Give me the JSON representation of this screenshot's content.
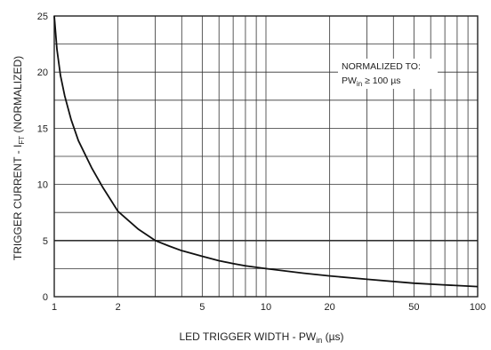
{
  "chart_data": {
    "type": "line",
    "x_scale": "log",
    "xlim": [
      1,
      100
    ],
    "ylim": [
      0,
      25
    ],
    "grid": true,
    "x_ticks": [
      1,
      2,
      5,
      10,
      20,
      50,
      100
    ],
    "x_tick_labels": [
      "1",
      "2",
      "5",
      "10",
      "20",
      "50",
      "100"
    ],
    "x_minor_ticks": [
      3,
      4,
      6,
      7,
      8,
      9,
      30,
      40,
      60,
      70,
      80,
      90
    ],
    "y_ticks": [
      0,
      5,
      10,
      15,
      20,
      25
    ],
    "y_tick_labels": [
      "0",
      "5",
      "10",
      "15",
      "20",
      "25"
    ],
    "y_minor_ticks": [
      2.5,
      7.5,
      12.5,
      17.5,
      22.5
    ],
    "xlabel": {
      "pre": "LED TRIGGER WIDTH - PW",
      "sub": "in",
      "post": " (µs)"
    },
    "ylabel": {
      "pre": "TRIGGER CURRENT - I",
      "sub": "FT",
      "post": " (NORMALIZED)"
    },
    "annotation": {
      "line1": "NORMALIZED TO:",
      "line2_pre": "PW",
      "line2_sub": "in",
      "line2_post": " ≥ 100 µs"
    },
    "series": [
      {
        "x": [
          1.0,
          1.03,
          1.07,
          1.12,
          1.2,
          1.3,
          1.5,
          1.7,
          2.0,
          2.5,
          3.0,
          3.5,
          4,
          5,
          6,
          7,
          8,
          10,
          15,
          20,
          30,
          50,
          70,
          100
        ],
        "y": [
          25.0,
          22.0,
          19.7,
          17.9,
          15.8,
          13.9,
          11.5,
          9.7,
          7.6,
          6.0,
          5.0,
          4.5,
          4.1,
          3.6,
          3.2,
          2.95,
          2.75,
          2.5,
          2.1,
          1.85,
          1.55,
          1.2,
          1.05,
          0.9
        ]
      }
    ]
  }
}
